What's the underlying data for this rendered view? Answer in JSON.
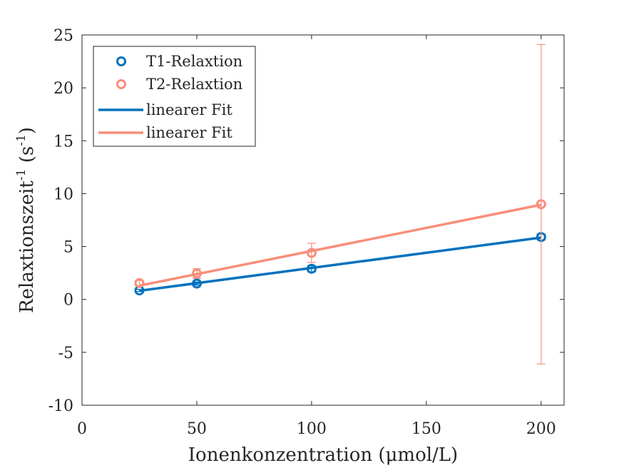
{
  "chart_data": {
    "type": "scatter",
    "xlabel": "Ionenkonzentration (μmol/L)",
    "ylabel": "Relaxtionszeit",
    "ylabel_sup": "-1",
    "ylabel_unit_open": " (s",
    "ylabel_unit_sup": "-1",
    "ylabel_unit_close": ")",
    "xlim": [
      0,
      210
    ],
    "ylim": [
      -10,
      25
    ],
    "xticks": [
      0,
      50,
      100,
      150,
      200
    ],
    "yticks": [
      -10,
      -5,
      0,
      5,
      10,
      15,
      20,
      25
    ],
    "grid": false,
    "legend_position": "top-left",
    "series": [
      {
        "name": "T1-Relaxtion",
        "kind": "markers",
        "color": "#0072bd",
        "x": [
          25,
          50,
          100,
          200
        ],
        "y": [
          0.85,
          1.5,
          2.9,
          5.9
        ],
        "err": [
          0.1,
          0.15,
          0.3,
          0.3
        ]
      },
      {
        "name": "T2-Relaxtion",
        "kind": "markers",
        "color": "#f88e7b",
        "x": [
          25,
          50,
          100,
          200
        ],
        "y": [
          1.55,
          2.45,
          4.4,
          9.0
        ],
        "err": [
          0.25,
          0.45,
          0.9,
          15.1
        ]
      },
      {
        "name": "linearer Fit",
        "kind": "line",
        "color": "#0072bd",
        "x": [
          25,
          200
        ],
        "y": [
          0.82,
          5.85
        ]
      },
      {
        "name": "linearer Fit",
        "kind": "line",
        "color": "#f88e7b",
        "x": [
          25,
          200
        ],
        "y": [
          1.3,
          8.95
        ]
      }
    ]
  }
}
